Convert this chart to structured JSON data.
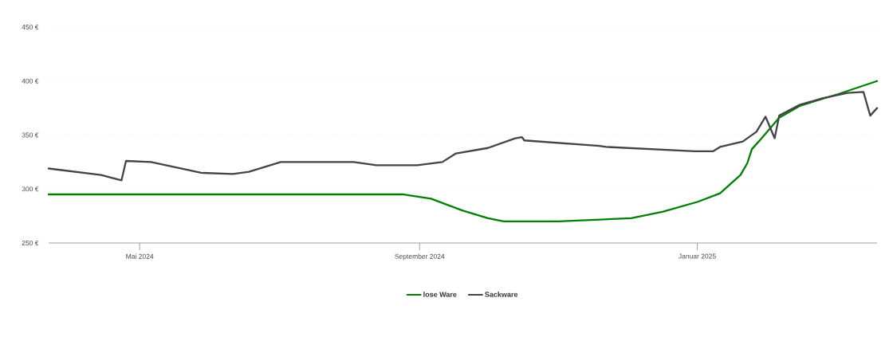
{
  "chart_data": {
    "type": "line",
    "xlim": [
      "2024-03-22",
      "2025-03-21"
    ],
    "xticks": [
      {
        "value": "2024-05-01",
        "label": "Mai 2024"
      },
      {
        "value": "2024-09-01",
        "label": "September 2024"
      },
      {
        "value": "2025-01-01",
        "label": "Januar 2025"
      }
    ],
    "ylim": [
      250,
      450
    ],
    "yticks": [
      {
        "value": 250,
        "label": "250 €"
      },
      {
        "value": 300,
        "label": "300 €"
      },
      {
        "value": 350,
        "label": "350 €"
      },
      {
        "value": 400,
        "label": "400 €"
      },
      {
        "value": 450,
        "label": "450 €"
      }
    ],
    "grid": "y",
    "legend": "bottom",
    "marker": "none",
    "series": [
      {
        "name": "lose Ware",
        "color": "#008000",
        "x": [
          "2024-03-22",
          "2024-08-25",
          "2024-09-06",
          "2024-09-20",
          "2024-10-01",
          "2024-10-08",
          "2024-11-01",
          "2024-12-03",
          "2024-12-17",
          "2025-01-01",
          "2025-01-11",
          "2025-01-20",
          "2025-01-23",
          "2025-01-25",
          "2025-01-28",
          "2025-02-06",
          "2025-02-15",
          "2025-03-04",
          "2025-03-21"
        ],
        "values": [
          295,
          295,
          291,
          280,
          273,
          270,
          270,
          273,
          279,
          288,
          296,
          313,
          324,
          337,
          344,
          366,
          377,
          388,
          400
        ]
      },
      {
        "name": "Sackware",
        "color": "#434348",
        "x": [
          "2024-03-22",
          "2024-04-14",
          "2024-04-23",
          "2024-04-25",
          "2024-05-06",
          "2024-05-28",
          "2024-06-11",
          "2024-06-18",
          "2024-07-02",
          "2024-08-03",
          "2024-08-13",
          "2024-08-31",
          "2024-09-11",
          "2024-09-17",
          "2024-10-01",
          "2024-10-13",
          "2024-10-16",
          "2024-10-17",
          "2024-11-19",
          "2024-11-22",
          "2024-12-31",
          "2025-01-08",
          "2025-01-11",
          "2025-01-21",
          "2025-01-27",
          "2025-01-31",
          "2025-02-04",
          "2025-02-06",
          "2025-02-15",
          "2025-02-25",
          "2025-03-08",
          "2025-03-15",
          "2025-03-18",
          "2025-03-21"
        ],
        "values": [
          319,
          313,
          308,
          326,
          325,
          315,
          314,
          316,
          325,
          325,
          322,
          322,
          325,
          333,
          338,
          347,
          348,
          345,
          340,
          339,
          335,
          335,
          339,
          344,
          353,
          367,
          347,
          368,
          378,
          384,
          389,
          390,
          368,
          375
        ]
      }
    ]
  }
}
